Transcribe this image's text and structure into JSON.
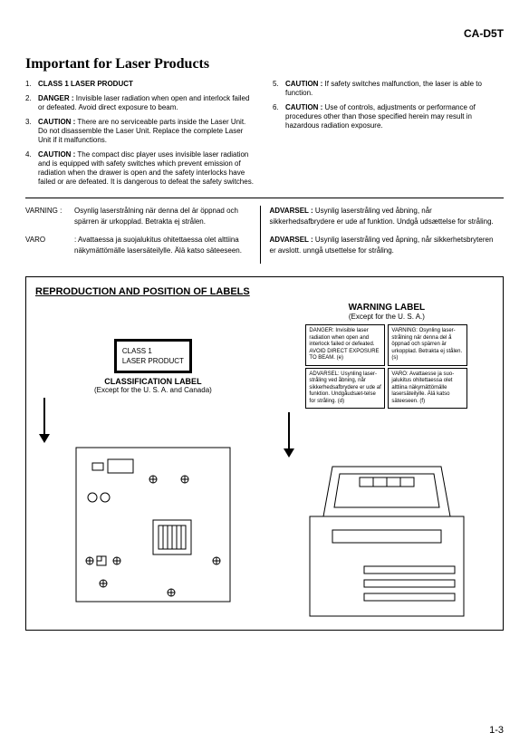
{
  "model": "CA-D5T",
  "title": "Important for Laser Products",
  "left_items": [
    {
      "num": "1.",
      "bold": "CLASS 1 LASER PRODUCT",
      "text": ""
    },
    {
      "num": "2.",
      "bold": "DANGER :",
      "text": " Invisible laser radiation when open and interlock failed or defeated. Avoid direct exposure to beam."
    },
    {
      "num": "3.",
      "bold": "CAUTION :",
      "text": " There are no serviceable parts inside the Laser Unit. Do not disassemble the Laser Unit. Replace the complete Laser Unit if it malfunctions."
    },
    {
      "num": "4.",
      "bold": "CAUTION :",
      "text": " The compact disc player uses invisible laser radiation and is equipped with safety switches which prevent emission of radiation when the drawer is open and the safety interlocks have failed or are defeated. It is dangerous to defeat the safety switches."
    }
  ],
  "right_items": [
    {
      "num": "5.",
      "bold": "CAUTION :",
      "text": " If safety switches malfunction, the laser is able to function."
    },
    {
      "num": "6.",
      "bold": "CAUTION :",
      "text": " Use of controls, adjustments or performance of procedures other than those specified herein may result in hazardous radiation exposure."
    }
  ],
  "warn_left": [
    {
      "k": "VARNING :",
      "text": "Osynlig laserstrålning när denna del är öppnad och spärren är urkopplad. Betrakta ej strålen."
    },
    {
      "k": "VARO",
      "text": ": Avattaessa ja suojalukitus ohitettaessa olet alttiina näkymättömälle lasersäteilylle. Älä katso säteeseen."
    }
  ],
  "warn_right": [
    {
      "k": "",
      "text": "ADVARSEL : Usynlig laserstråling ved åbning, når sikkerhedsafbrydere er ude af funktion. Undgå udsættelse for stråling.",
      "bold": "ADVARSEL :"
    },
    {
      "k": "",
      "text": "ADVARSEL : Usynlig laserstråling ved åpning, når sikkerhetsbryteren er avslott. unngå utsettelse for stråling.",
      "bold": "ADVARSEL :"
    }
  ],
  "repro_title": "REPRODUCTION AND POSITION OF LABELS",
  "warning_label_title": "WARNING LABEL",
  "warning_label_sub": "(Except for the U. S. A.)",
  "mini_boxes_row1": [
    "DANGER:   Invisible laser radiation when open and interlock failed or defeated. AVOID DIRECT EXPOSURE TO BEAM.                      (e)",
    "VARNING:   Osynling laser-strålning när denna del å öppnad och spärren är urkopplad. Betrakta ej stålen.                      (s)"
  ],
  "mini_boxes_row2": [
    "ADVARSEL: Usynling laser-stråling ved åbning, når sikkerhedsafbrydere er ude af funktion. Undgåudsæt-telse for stråling.      (d)",
    "VARO:     Avattaesse ja suo-jalukitus ohitettaessa olet alttiina näkymättömälle lasersäteilylle. Älä katso säteeseen.               (f)"
  ],
  "class_label_lines": [
    "CLASS      1",
    "LASER   PRODUCT"
  ],
  "class_title": "CLASSIFICATION LABEL",
  "class_sub": "(Except for the U. S. A. and Canada)",
  "page_num": "1-3"
}
